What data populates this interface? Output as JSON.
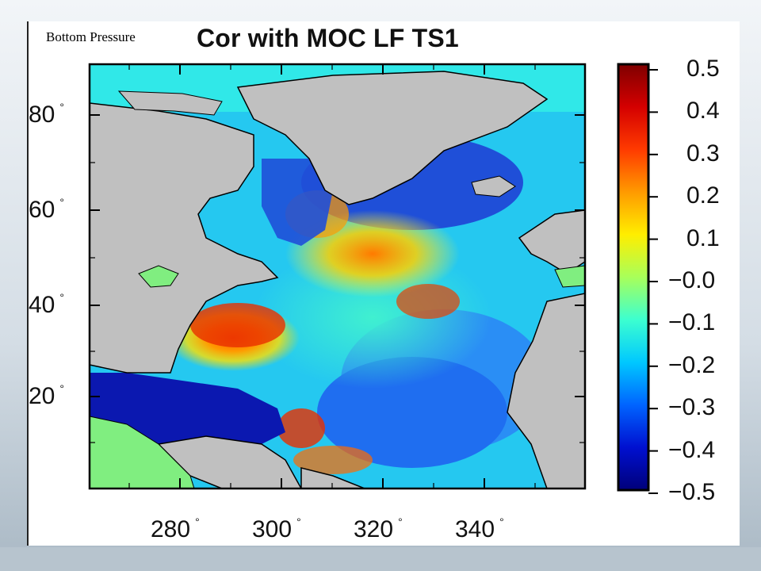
{
  "caption": "Bottom Pressure",
  "title": "Cor with MOC LF TS1",
  "lat_ticks": [
    {
      "value": "80",
      "unit": "°"
    },
    {
      "value": "60",
      "unit": "°"
    },
    {
      "value": "40",
      "unit": "°"
    },
    {
      "value": "20",
      "unit": "°"
    }
  ],
  "lon_ticks": [
    {
      "value": "280",
      "unit": "°"
    },
    {
      "value": "300",
      "unit": "°"
    },
    {
      "value": "320",
      "unit": "°"
    },
    {
      "value": "340",
      "unit": "°"
    }
  ],
  "colorbar": {
    "labels": [
      "0.5",
      "0.4",
      "0.3",
      "0.2",
      "0.1",
      "−0.0",
      "−0.1",
      "−0.2",
      "−0.3",
      "−0.4",
      "−0.5"
    ],
    "colors": [
      "#7f0000",
      "#d40000",
      "#ff3a00",
      "#ff9a00",
      "#ffee00",
      "#a8ff5a",
      "#3cffd0",
      "#00c8ff",
      "#0064ff",
      "#0010d0",
      "#00007a"
    ]
  },
  "colors": {
    "land": "#c0c0c0",
    "green_land": "#80ee80",
    "ocean_deep": "#1f63e6"
  }
}
